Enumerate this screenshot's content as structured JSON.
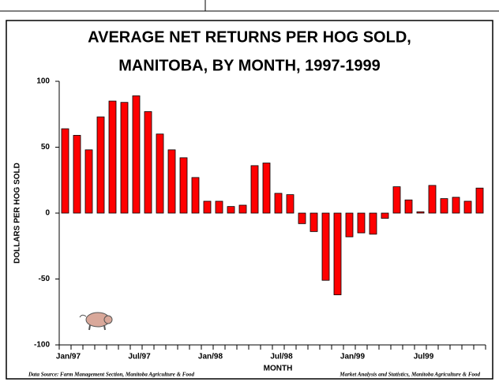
{
  "chart_data": {
    "type": "bar",
    "title": [
      "AVERAGE NET RETURNS PER HOG SOLD,",
      "MANITOBA, BY MONTH, 1997-1999"
    ],
    "y_label": "DOLLARS PER HOG SOLD",
    "x_label": "MONTH",
    "source_left": "Data Source: Farm Management Section, Manitoba Agriculture & Food",
    "source_right": "Market Analysis and Statistics, Manitoba Agriculture & Food",
    "categories": [
      "Jan/97",
      null,
      null,
      null,
      null,
      null,
      "Jul/97",
      null,
      null,
      null,
      null,
      null,
      "Jan/98",
      null,
      null,
      null,
      null,
      null,
      "Jul/98",
      null,
      null,
      null,
      null,
      null,
      "Jan/99",
      null,
      null,
      null,
      null,
      null,
      "Jul99",
      null,
      null,
      null,
      null,
      null
    ],
    "values": [
      64,
      59,
      48,
      73,
      85,
      84,
      89,
      77,
      60,
      48,
      42,
      27,
      9,
      9,
      5,
      6,
      36,
      38,
      15,
      14,
      -8,
      -14,
      -51,
      -62,
      -18,
      -15,
      -16,
      -4,
      20,
      10,
      1,
      21,
      11,
      12,
      9,
      19
    ],
    "color": "#ff0000",
    "ylim": [
      -100,
      100
    ],
    "yticks": [
      100,
      50,
      0,
      -50,
      -100
    ]
  }
}
